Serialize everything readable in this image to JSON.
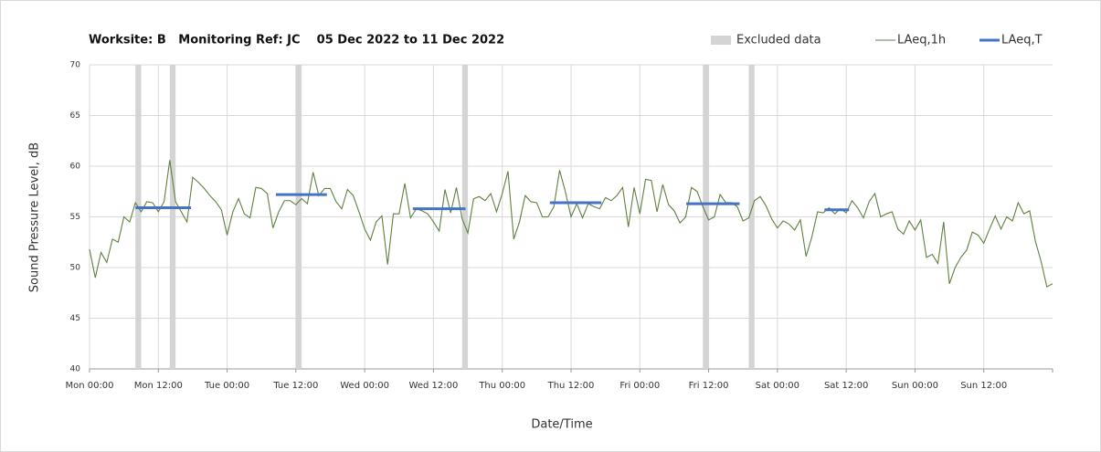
{
  "chart_data": {
    "type": "line",
    "title": "Worksite: B   Monitoring Ref: JC    05 Dec 2022 to 11 Dec 2022",
    "x_label": "Date/Time",
    "y_label": "Sound Pressure Level, dB",
    "xlim": [
      0,
      168
    ],
    "xticks": [
      {
        "value": 0,
        "label": "Mon 00:00"
      },
      {
        "value": 12,
        "label": "Mon 12:00"
      },
      {
        "value": 24,
        "label": "Tue 00:00"
      },
      {
        "value": 36,
        "label": "Tue 12:00"
      },
      {
        "value": 48,
        "label": "Wed 00:00"
      },
      {
        "value": 60,
        "label": "Wed 12:00"
      },
      {
        "value": 72,
        "label": "Thu 00:00"
      },
      {
        "value": 84,
        "label": "Thu 12:00"
      },
      {
        "value": 96,
        "label": "Fri 00:00"
      },
      {
        "value": 108,
        "label": "Fri 12:00"
      },
      {
        "value": 120,
        "label": "Sat 00:00"
      },
      {
        "value": 132,
        "label": "Sat 12:00"
      },
      {
        "value": 144,
        "label": "Sun 00:00"
      },
      {
        "value": 156,
        "label": "Sun 12:00"
      }
    ],
    "ylim": [
      40,
      70
    ],
    "yticks": [
      40,
      45,
      50,
      55,
      60,
      65,
      70
    ],
    "grid": true,
    "legend": "top-right",
    "excluded": {
      "name": "Excluded data",
      "color": "#d4d4d4",
      "ranges": [
        [
          8,
          9
        ],
        [
          14,
          15
        ],
        [
          36,
          37
        ],
        [
          65,
          66
        ],
        [
          107,
          108
        ],
        [
          115,
          116
        ]
      ]
    },
    "series": [
      {
        "name": "LAeq,1h",
        "color": "#5f8040",
        "x": [
          0,
          1,
          2,
          3,
          4,
          5,
          6,
          7,
          8,
          9,
          10,
          11,
          12,
          13,
          14,
          15,
          16,
          17,
          18,
          19,
          20,
          21,
          22,
          23,
          24,
          25,
          26,
          27,
          28,
          29,
          30,
          31,
          32,
          33,
          34,
          35,
          36,
          37,
          38,
          39,
          40,
          41,
          42,
          43,
          44,
          45,
          46,
          47,
          48,
          49,
          50,
          51,
          52,
          53,
          54,
          55,
          56,
          57,
          58,
          59,
          60,
          61,
          62,
          63,
          64,
          65,
          66,
          67,
          68,
          69,
          70,
          71,
          72,
          73,
          74,
          75,
          76,
          77,
          78,
          79,
          80,
          81,
          82,
          83,
          84,
          85,
          86,
          87,
          88,
          89,
          90,
          91,
          92,
          93,
          94,
          95,
          96,
          97,
          98,
          99,
          100,
          101,
          102,
          103,
          104,
          105,
          106,
          107,
          108,
          109,
          110,
          111,
          112,
          113,
          114,
          115,
          116,
          117,
          118,
          119,
          120,
          121,
          122,
          123,
          124,
          125,
          126,
          127,
          128,
          129,
          130,
          131,
          132,
          133,
          134,
          135,
          136,
          137,
          138,
          139,
          140,
          141,
          142,
          143,
          144,
          145,
          146,
          147,
          148,
          149,
          150,
          151,
          152,
          153,
          154,
          155,
          156,
          157,
          158,
          159,
          160,
          161,
          162,
          163,
          164,
          165,
          166,
          167,
          168
        ],
        "values": [
          51.8,
          49,
          51.5,
          50.5,
          52.8,
          52.5,
          55,
          54.5,
          56.4,
          55.5,
          56.5,
          56.4,
          55.5,
          56.5,
          60.6,
          56.5,
          55.5,
          54.5,
          58.9,
          58.4,
          57.8,
          57.1,
          56.5,
          55.7,
          53.2,
          55.5,
          56.8,
          55.3,
          54.9,
          57.9,
          57.8,
          57.3,
          53.9,
          55.5,
          56.6,
          56.6,
          56.2,
          56.8,
          56.3,
          59.4,
          57.1,
          57.8,
          57.8,
          56.5,
          55.8,
          57.7,
          57.1,
          55.5,
          53.8,
          52.7,
          54.5,
          55.1,
          50.3,
          55.3,
          55.3,
          58.3,
          54.9,
          55.8,
          55.6,
          55.3,
          54.5,
          53.6,
          57.7,
          55.4,
          57.9,
          54.8,
          53.4,
          56.8,
          57,
          56.6,
          57.3,
          55.5,
          57.3,
          59.5,
          52.8,
          54.5,
          57.1,
          56.5,
          56.4,
          55,
          55,
          56,
          59.6,
          57.5,
          55,
          56.3,
          54.9,
          56.3,
          56,
          55.8,
          56.9,
          56.6,
          57.1,
          57.9,
          54,
          57.9,
          55.3,
          58.7,
          58.6,
          55.5,
          58.2,
          56.2,
          55.6,
          54.4,
          55,
          57.9,
          57.5,
          56,
          54.7,
          55,
          57.2,
          56.4,
          56.4,
          56,
          54.6,
          54.9,
          56.6,
          57,
          56.1,
          54.8,
          53.9,
          54.6,
          54.3,
          53.7,
          54.7,
          51.1,
          53,
          55.5,
          55.4,
          55.9,
          55.3,
          55.8,
          55.4,
          56.6,
          55.9,
          54.9,
          56.5,
          57.3,
          55,
          55.3,
          55.5,
          53.8,
          53.3,
          54.6,
          53.7,
          54.7,
          51,
          51.3,
          50.4,
          54.5,
          48.4,
          50,
          51,
          51.7,
          53.5,
          53.2,
          52.4,
          53.8,
          55.1,
          53.8,
          55,
          54.6,
          56.4,
          55.3,
          55.6,
          52.6,
          50.6,
          48.1,
          48.4
        ]
      },
      {
        "name": "LAeq,T",
        "color": "#4472c4",
        "ranges": [
          [
            8,
            17.7
          ],
          [
            32.5,
            41.4
          ],
          [
            56.4,
            65.6
          ],
          [
            80.3,
            89.3
          ],
          [
            104.1,
            113.4
          ],
          [
            128.2,
            132.5
          ]
        ],
        "values": [
          55.9,
          57.2,
          55.8,
          56.4,
          56.3,
          55.7
        ]
      }
    ]
  }
}
